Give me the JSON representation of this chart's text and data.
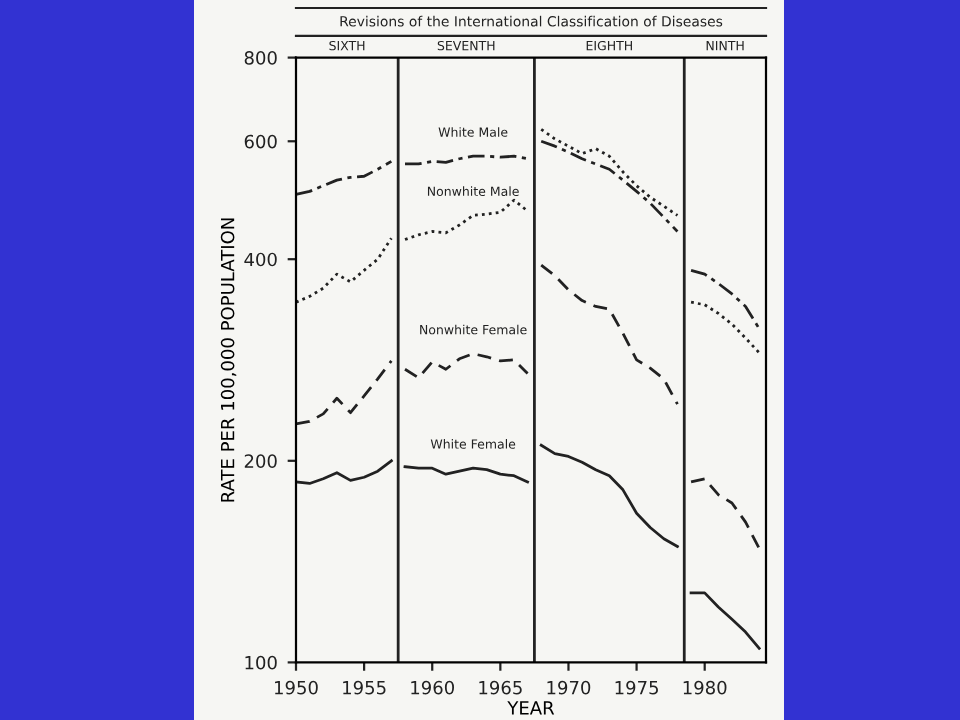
{
  "chart_data": {
    "type": "line",
    "title": "Revisions of the International Classification of Diseases",
    "xlabel": "YEAR",
    "ylabel": "RATE PER 100,000 POPULATION",
    "annotations": [
      "SIXTH",
      "SEVENTH",
      "EIGHTH",
      "NINTH"
    ],
    "x": [
      1950,
      1951,
      1952,
      1953,
      1954,
      1955,
      1956,
      1957,
      1957.5,
      1958,
      1959,
      1960,
      1961,
      1962,
      1963,
      1964,
      1965,
      1966,
      1967,
      1967.5,
      1968,
      1969,
      1970,
      1971,
      1972,
      1973,
      1974,
      1975,
      1976,
      1977,
      1978,
      1978.5,
      1979,
      1980,
      1981,
      1982,
      1983,
      1984
    ],
    "series": [
      {
        "name": "White Male",
        "color": "#222222",
        "line_style": "dashdot",
        "values": [
          500,
          505,
          515,
          525,
          530,
          532,
          545,
          560,
          null,
          555,
          555,
          560,
          558,
          565,
          570,
          570,
          568,
          570,
          565,
          null,
          600,
          590,
          578,
          565,
          555,
          545,
          525,
          505,
          485,
          462,
          440,
          null,
          385,
          380,
          368,
          355,
          340,
          315
        ]
      },
      {
        "name": "Nonwhite Male",
        "color": "#222222",
        "line_style": "dotted",
        "values": [
          345,
          352,
          362,
          380,
          370,
          385,
          400,
          430,
          null,
          428,
          435,
          440,
          438,
          450,
          465,
          467,
          470,
          490,
          472,
          null,
          625,
          605,
          590,
          575,
          585,
          570,
          540,
          515,
          495,
          480,
          465,
          null,
          345,
          342,
          332,
          320,
          305,
          290
        ]
      },
      {
        "name": "Nonwhite Female",
        "color": "#222222",
        "line_style": "dashed",
        "values": [
          227,
          229,
          235,
          248,
          236,
          250,
          265,
          282,
          null,
          274,
          266,
          281,
          274,
          284,
          289,
          286,
          282,
          283,
          270,
          null,
          392,
          378,
          360,
          347,
          340,
          337,
          310,
          283,
          275,
          265,
          243,
          null,
          186,
          188,
          178,
          173,
          162,
          148
        ]
      },
      {
        "name": "White Female",
        "color": "#222222",
        "line_style": "solid",
        "values": [
          186,
          185,
          188,
          192,
          187,
          189,
          193,
          200,
          null,
          196,
          195,
          195,
          191,
          193,
          195,
          194,
          191,
          190,
          186,
          null,
          211,
          205,
          203,
          199,
          194,
          190,
          181,
          167,
          159,
          153,
          149,
          null,
          127,
          127,
          121,
          116,
          111,
          105
        ]
      }
    ],
    "ref_lines": [
      {
        "axis": "x",
        "value": 1957.5,
        "color": "#222222"
      },
      {
        "axis": "x",
        "value": 1967.5,
        "color": "#222222"
      },
      {
        "axis": "x",
        "value": 1978.5,
        "color": "#222222"
      }
    ],
    "log": true,
    "xlim": [
      1950,
      1984.5
    ],
    "ylim": [
      100,
      800
    ],
    "xticks": [
      1950,
      1955,
      1960,
      1965,
      1970,
      1975,
      1980
    ],
    "yticks": [
      100,
      200,
      400,
      600,
      800
    ],
    "grid": false,
    "legend": false
  }
}
